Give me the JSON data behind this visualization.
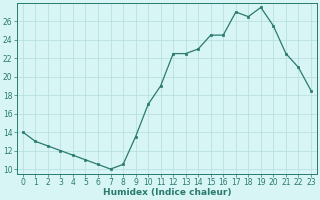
{
  "x": [
    0,
    1,
    2,
    3,
    4,
    5,
    6,
    7,
    8,
    9,
    10,
    11,
    12,
    13,
    14,
    15,
    16,
    17,
    18,
    19,
    20,
    21,
    22,
    23
  ],
  "y": [
    14,
    13,
    12.5,
    12,
    11.5,
    11,
    10.5,
    10,
    10.5,
    13.5,
    17,
    19,
    22.5,
    22.5,
    23,
    24.5,
    24.5,
    27,
    26.5,
    27.5,
    25.5,
    22.5,
    21,
    18.5
  ],
  "line_color": "#2a7a6e",
  "marker_color": "#2a7a6e",
  "bg_color": "#d8f5f5",
  "grid_color": "#b8e0e0",
  "xlabel": "Humidex (Indice chaleur)",
  "ylim": [
    9.5,
    28
  ],
  "xlim": [
    -0.5,
    23.5
  ],
  "yticks": [
    10,
    12,
    14,
    16,
    18,
    20,
    22,
    24,
    26
  ],
  "xticks": [
    0,
    1,
    2,
    3,
    4,
    5,
    6,
    7,
    8,
    9,
    10,
    11,
    12,
    13,
    14,
    15,
    16,
    17,
    18,
    19,
    20,
    21,
    22,
    23
  ],
  "label_fontsize": 6.5,
  "tick_fontsize": 5.5
}
